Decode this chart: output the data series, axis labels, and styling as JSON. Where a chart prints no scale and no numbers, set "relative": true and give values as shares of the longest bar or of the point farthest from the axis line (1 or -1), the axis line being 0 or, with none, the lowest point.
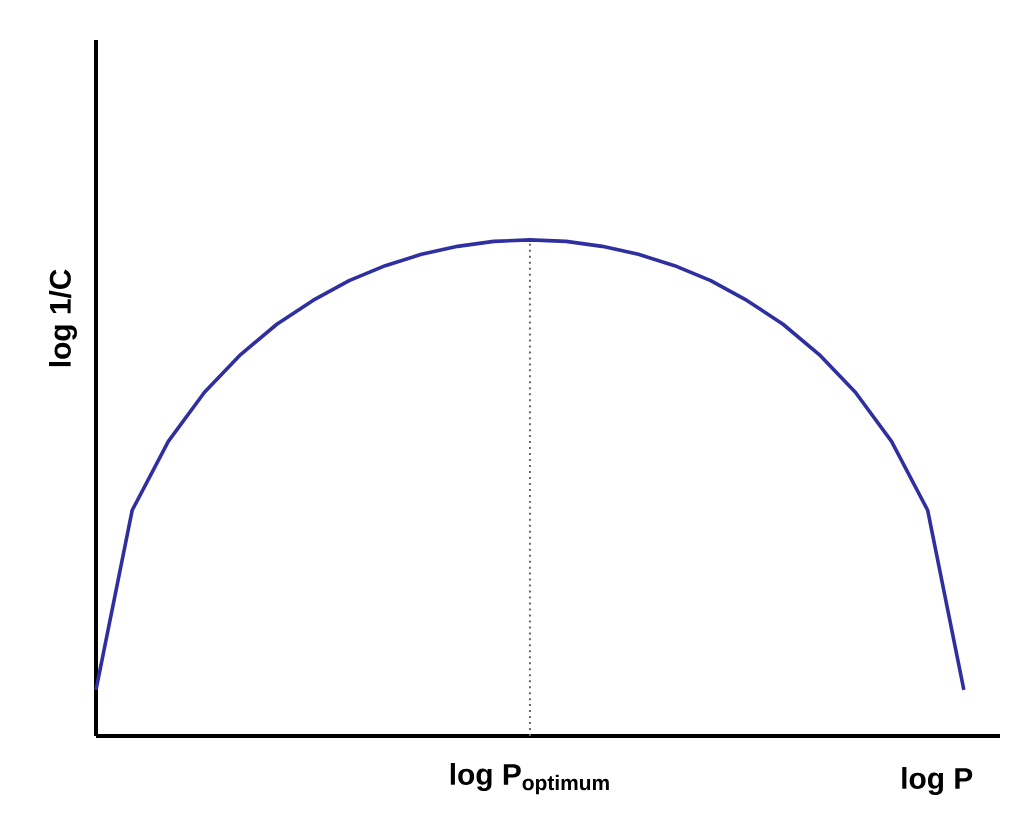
{
  "chart_data": {
    "type": "line",
    "relative": true,
    "xlabel": "log P",
    "ylabel": "log 1/C",
    "categories": [
      null,
      null,
      null,
      null,
      null,
      null,
      null,
      null,
      null,
      null,
      null,
      null,
      null,
      null,
      null,
      null,
      null,
      null,
      null,
      null,
      null,
      null,
      null,
      null,
      null
    ],
    "series": [
      {
        "color": "#2f2f9f",
        "values": [
          0.093,
          0.455,
          0.594,
          0.693,
          0.769,
          0.83,
          0.878,
          0.918,
          0.948,
          0.971,
          0.987,
          0.997,
          1,
          0.997,
          0.987,
          0.971,
          0.948,
          0.918,
          0.878,
          0.83,
          0.769,
          0.693,
          0.594,
          0.455,
          0.093
        ]
      }
    ],
    "annotations": [
      "log P$_{optimum}$"
    ],
    "marker": "none",
    "line_style": "solid"
  }
}
